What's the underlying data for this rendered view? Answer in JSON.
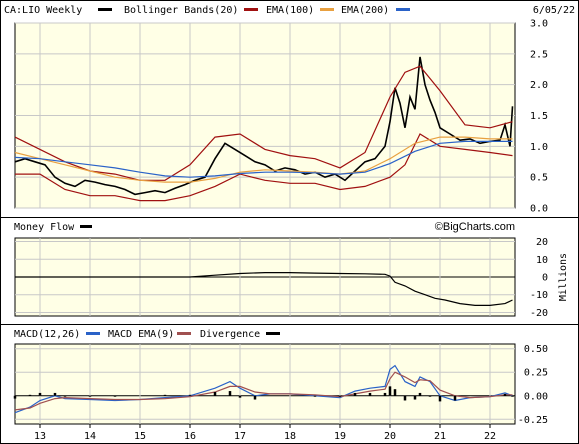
{
  "header": {
    "symbol_label": "CA:LIO Weekly",
    "bb_label": "Bollinger Bands(20)",
    "ema100_label": "EMA(100)",
    "ema200_label": "EMA(200)",
    "date": "6/05/22"
  },
  "watermark": "©BigCharts.com",
  "colors": {
    "background": "#ffffe6",
    "grid": "#c8c8c8",
    "price": "#000000",
    "bollinger": "#a01010",
    "ema100": "#e8a040",
    "ema200": "#2a62c8",
    "macd": "#2a62c8",
    "macd_ema": "#a05050",
    "divergence": "#000000",
    "moneyflow": "#000000"
  },
  "chart_data": [
    {
      "type": "line",
      "name": "price",
      "title": "CA:LIO Weekly",
      "yticks": [
        "0.0",
        "0.5",
        "1.0",
        "1.5",
        "2.0",
        "2.5",
        "3.0"
      ],
      "ylim": [
        0,
        3
      ],
      "xlim": [
        12.5,
        22.5
      ],
      "legend": [
        "Bollinger Bands(20)",
        "EMA(100)",
        "EMA(200)"
      ],
      "series": [
        {
          "name": "CA:LIO Weekly",
          "x": [
            12.5,
            12.7,
            12.9,
            13.1,
            13.3,
            13.5,
            13.7,
            13.9,
            14.1,
            14.3,
            14.5,
            14.7,
            14.9,
            15.1,
            15.3,
            15.5,
            15.7,
            15.9,
            16.1,
            16.3,
            16.5,
            16.7,
            16.9,
            17.1,
            17.3,
            17.5,
            17.7,
            17.9,
            18.1,
            18.3,
            18.5,
            18.7,
            18.9,
            19.1,
            19.3,
            19.5,
            19.7,
            19.9,
            20.0,
            20.1,
            20.2,
            20.3,
            20.4,
            20.5,
            20.6,
            20.7,
            20.8,
            20.9,
            21.0,
            21.2,
            21.4,
            21.6,
            21.8,
            22.0,
            22.2,
            22.3,
            22.4,
            22.45
          ],
          "values": [
            0.75,
            0.8,
            0.75,
            0.7,
            0.5,
            0.4,
            0.35,
            0.45,
            0.42,
            0.38,
            0.35,
            0.3,
            0.22,
            0.25,
            0.28,
            0.25,
            0.32,
            0.38,
            0.45,
            0.5,
            0.8,
            1.05,
            0.95,
            0.85,
            0.75,
            0.7,
            0.6,
            0.65,
            0.62,
            0.55,
            0.58,
            0.5,
            0.55,
            0.45,
            0.6,
            0.75,
            0.8,
            1.0,
            1.4,
            1.95,
            1.7,
            1.3,
            1.8,
            1.6,
            2.45,
            2.0,
            1.75,
            1.55,
            1.3,
            1.2,
            1.1,
            1.12,
            1.05,
            1.08,
            1.1,
            1.35,
            1.0,
            1.65
          ]
        },
        {
          "name": "Bollinger Upper",
          "x": [
            12.5,
            13.0,
            13.5,
            14.0,
            14.5,
            15.0,
            15.5,
            16.0,
            16.5,
            17.0,
            17.5,
            18.0,
            18.5,
            19.0,
            19.5,
            20.0,
            20.3,
            20.6,
            21.0,
            21.5,
            22.0,
            22.45
          ],
          "values": [
            1.15,
            0.95,
            0.75,
            0.6,
            0.55,
            0.45,
            0.45,
            0.7,
            1.15,
            1.2,
            0.95,
            0.85,
            0.8,
            0.65,
            0.9,
            1.8,
            2.2,
            2.3,
            1.9,
            1.35,
            1.3,
            1.4
          ]
        },
        {
          "name": "Bollinger Lower",
          "x": [
            12.5,
            13.0,
            13.5,
            14.0,
            14.5,
            15.0,
            15.5,
            16.0,
            16.5,
            17.0,
            17.5,
            18.0,
            18.5,
            19.0,
            19.5,
            20.0,
            20.3,
            20.6,
            21.0,
            21.5,
            22.0,
            22.45
          ],
          "values": [
            0.55,
            0.55,
            0.3,
            0.2,
            0.2,
            0.12,
            0.12,
            0.2,
            0.35,
            0.55,
            0.45,
            0.4,
            0.4,
            0.3,
            0.35,
            0.5,
            0.7,
            1.2,
            1.0,
            0.95,
            0.9,
            0.85
          ]
        },
        {
          "name": "EMA(100)",
          "x": [
            12.5,
            13.0,
            13.5,
            14.0,
            14.5,
            15.0,
            15.5,
            16.0,
            16.5,
            17.0,
            17.5,
            18.0,
            18.5,
            19.0,
            19.5,
            20.0,
            20.5,
            21.0,
            21.5,
            22.0,
            22.45
          ],
          "values": [
            0.9,
            0.8,
            0.7,
            0.6,
            0.5,
            0.45,
            0.42,
            0.42,
            0.48,
            0.58,
            0.62,
            0.6,
            0.58,
            0.55,
            0.6,
            0.8,
            1.05,
            1.15,
            1.15,
            1.12,
            1.12
          ]
        },
        {
          "name": "EMA(200)",
          "x": [
            12.5,
            13.0,
            13.5,
            14.0,
            14.5,
            15.0,
            15.5,
            16.0,
            16.5,
            17.0,
            17.5,
            18.0,
            18.5,
            19.0,
            19.5,
            20.0,
            20.5,
            21.0,
            21.5,
            22.0,
            22.45
          ],
          "values": [
            0.82,
            0.8,
            0.75,
            0.7,
            0.65,
            0.58,
            0.52,
            0.5,
            0.52,
            0.56,
            0.58,
            0.58,
            0.57,
            0.55,
            0.58,
            0.72,
            0.92,
            1.05,
            1.08,
            1.08,
            1.08
          ]
        }
      ]
    },
    {
      "type": "line",
      "name": "moneyflow",
      "title": "Money Flow",
      "ylabel": "Millions",
      "yticks": [
        "20",
        "10",
        "0",
        "-10",
        "-20"
      ],
      "ylim": [
        -22,
        22
      ],
      "xlim": [
        12.5,
        22.5
      ],
      "series": [
        {
          "name": "Money Flow",
          "x": [
            12.5,
            13,
            14,
            15,
            16,
            16.5,
            17,
            17.5,
            18,
            18.5,
            19,
            19.5,
            19.9,
            20.0,
            20.1,
            20.3,
            20.5,
            20.7,
            20.9,
            21.1,
            21.4,
            21.7,
            22.0,
            22.3,
            22.45
          ],
          "values": [
            0,
            0,
            0,
            0,
            0,
            1,
            2,
            2.5,
            2.5,
            2.2,
            2,
            1.8,
            1.5,
            0.5,
            -3,
            -5,
            -8,
            -10,
            -12,
            -13,
            -15,
            -16,
            -16,
            -15,
            -13
          ]
        }
      ]
    },
    {
      "type": "line",
      "name": "macd",
      "title": "MACD(12,26)",
      "legend": [
        "MACD(12,26)",
        "MACD EMA(9)",
        "Divergence"
      ],
      "yticks": [
        "0.50",
        "0.25",
        "0.00",
        "-0.25"
      ],
      "ylim": [
        -0.3,
        0.55
      ],
      "xlim": [
        12.5,
        22.5
      ],
      "series": [
        {
          "name": "MACD(12,26)",
          "x": [
            12.5,
            12.8,
            13.0,
            13.3,
            13.5,
            14.0,
            14.5,
            15.0,
            15.5,
            16.0,
            16.5,
            16.8,
            17.0,
            17.3,
            17.6,
            18.0,
            18.5,
            19.0,
            19.3,
            19.6,
            19.9,
            20.0,
            20.1,
            20.3,
            20.5,
            20.6,
            20.8,
            21.0,
            21.3,
            21.6,
            22.0,
            22.3,
            22.45
          ],
          "values": [
            -0.18,
            -0.12,
            -0.05,
            0.0,
            -0.03,
            -0.04,
            -0.05,
            -0.04,
            -0.02,
            0.0,
            0.08,
            0.15,
            0.08,
            0.0,
            0.02,
            0.02,
            0.0,
            -0.02,
            0.05,
            0.08,
            0.1,
            0.28,
            0.32,
            0.15,
            0.1,
            0.2,
            0.15,
            0.0,
            -0.05,
            -0.02,
            -0.01,
            0.03,
            0.0
          ]
        },
        {
          "name": "MACD EMA(9)",
          "x": [
            12.5,
            12.8,
            13.0,
            13.3,
            13.5,
            14.0,
            14.5,
            15.0,
            15.5,
            16.0,
            16.5,
            16.8,
            17.0,
            17.3,
            17.6,
            18.0,
            18.5,
            19.0,
            19.3,
            19.6,
            19.9,
            20.0,
            20.1,
            20.3,
            20.5,
            20.6,
            20.8,
            21.0,
            21.3,
            21.6,
            22.0,
            22.3,
            22.45
          ],
          "values": [
            -0.15,
            -0.13,
            -0.08,
            -0.03,
            -0.02,
            -0.03,
            -0.04,
            -0.04,
            -0.03,
            -0.01,
            0.04,
            0.1,
            0.1,
            0.04,
            0.02,
            0.02,
            0.01,
            -0.01,
            0.02,
            0.05,
            0.07,
            0.18,
            0.25,
            0.2,
            0.14,
            0.17,
            0.16,
            0.06,
            0.0,
            -0.02,
            -0.01,
            0.01,
            0.01
          ]
        },
        {
          "name": "Divergence",
          "x": [
            12.5,
            12.8,
            13.0,
            13.3,
            13.5,
            14.0,
            14.5,
            15.0,
            15.5,
            16.0,
            16.5,
            16.8,
            17.0,
            17.3,
            17.6,
            18.0,
            18.5,
            19.0,
            19.3,
            19.6,
            19.9,
            20.0,
            20.1,
            20.3,
            20.5,
            20.6,
            20.8,
            21.0,
            21.3,
            21.6,
            22.0,
            22.3,
            22.45
          ],
          "values": [
            -0.03,
            0.01,
            0.03,
            0.03,
            -0.01,
            -0.01,
            -0.01,
            0.0,
            0.01,
            0.01,
            0.04,
            0.05,
            -0.02,
            -0.04,
            0.0,
            0.0,
            -0.01,
            -0.01,
            0.03,
            0.03,
            0.03,
            0.1,
            0.07,
            -0.05,
            -0.04,
            0.03,
            -0.01,
            -0.06,
            -0.05,
            0.0,
            0.0,
            0.02,
            -0.01
          ]
        }
      ]
    }
  ],
  "panels": {
    "price_yticks": [
      "0.0",
      "0.5",
      "1.0",
      "1.5",
      "2.0",
      "2.5",
      "3.0"
    ],
    "mf_label": "Money Flow",
    "mf_yticks": [
      "20",
      "10",
      "0",
      "-10",
      "-20"
    ],
    "mf_unit": "Millions",
    "macd_label": "MACD(12,26)",
    "macd_ema_label": "MACD EMA(9)",
    "divergence_label": "Divergence",
    "macd_yticks": [
      "0.50",
      "0.25",
      "0.00",
      "-0.25"
    ]
  },
  "xaxis": {
    "labels": [
      "13",
      "14",
      "15",
      "16",
      "17",
      "18",
      "19",
      "20",
      "21",
      "22"
    ]
  }
}
